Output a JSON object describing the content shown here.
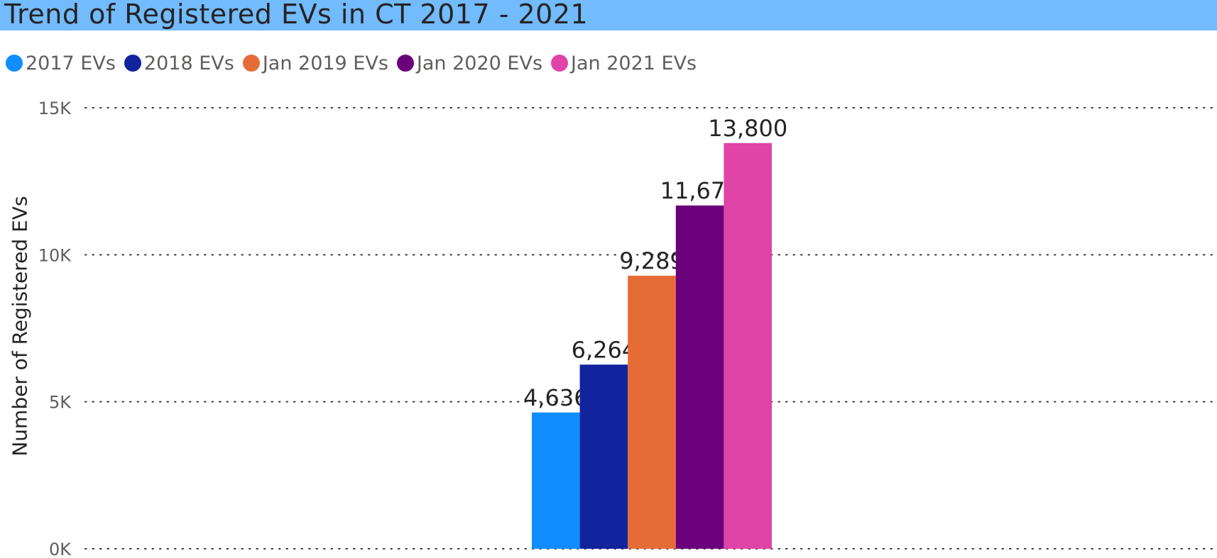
{
  "chart_data": {
    "type": "bar",
    "title": "Trend of Registered EVs in CT 2017 - 2021",
    "ylabel": "Number of Registered EVs",
    "xlabel": "",
    "ylim": [
      0,
      15000
    ],
    "yticks": [
      {
        "value": 0,
        "label": "0K"
      },
      {
        "value": 5000,
        "label": "5K"
      },
      {
        "value": 10000,
        "label": "10K"
      },
      {
        "value": 15000,
        "label": "15K"
      }
    ],
    "grid": true,
    "legend_position": "top-left",
    "series": [
      {
        "name": "2017 EVs",
        "value": 4636,
        "label": "4,636",
        "color": "#118dff"
      },
      {
        "name": "2018 EVs",
        "value": 6264,
        "label": "6,264",
        "color": "#12239e"
      },
      {
        "name": "Jan 2019 EVs",
        "value": 9289,
        "label": "9,289",
        "color": "#e66c37"
      },
      {
        "name": "Jan 2020 EVs",
        "value": 11677,
        "label": "11,677",
        "color": "#6b007b"
      },
      {
        "name": "Jan 2021 EVs",
        "value": 13800,
        "label": "13,800",
        "color": "#e044a7"
      }
    ]
  }
}
